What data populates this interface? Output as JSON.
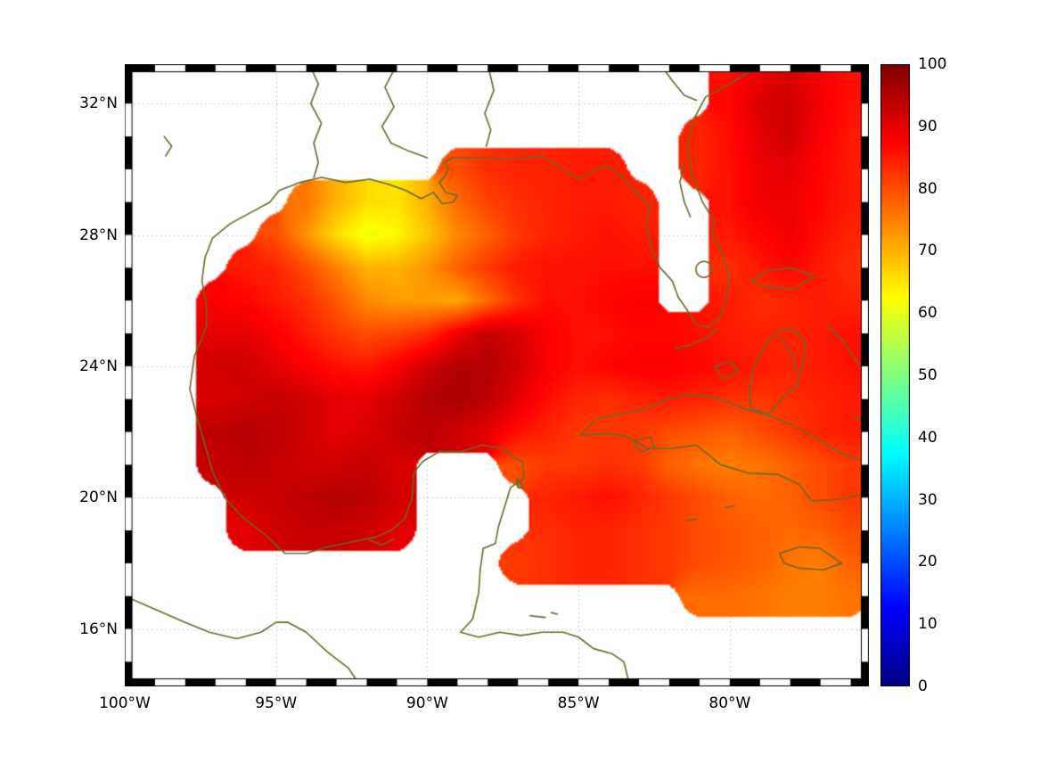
{
  "axes": {
    "x_ticks": [
      {
        "label": "100°W",
        "lon": -100
      },
      {
        "label": "95°W",
        "lon": -95
      },
      {
        "label": "90°W",
        "lon": -90
      },
      {
        "label": "85°W",
        "lon": -85
      },
      {
        "label": "80°W",
        "lon": -80
      }
    ],
    "y_ticks": [
      {
        "label": "32°N",
        "lat": 32
      },
      {
        "label": "28°N",
        "lat": 28
      },
      {
        "label": "24°N",
        "lat": 24
      },
      {
        "label": "20°N",
        "lat": 20
      },
      {
        "label": "16°N",
        "lat": 16
      }
    ],
    "extent": {
      "lon_min": -100,
      "lon_max": -75.4,
      "lat_min": 14.25,
      "lat_max": 33.2
    },
    "grid_on": true,
    "grid_color": "#c0c0c0",
    "coast_color": "#6a682a"
  },
  "colorbar": {
    "min": 0,
    "max": 100,
    "ticks": [
      0,
      10,
      20,
      30,
      40,
      50,
      60,
      70,
      80,
      90,
      100
    ],
    "colormap": "jet",
    "position": "right"
  },
  "chart_data": {
    "type": "heatmap",
    "title": "",
    "colormap": "jet",
    "value_range": [
      0,
      100
    ],
    "region": "Gulf of Mexico / NW Caribbean / W Atlantic",
    "no_data": "white (land and outside model domain)",
    "grid": {
      "lon_start": -100,
      "lon_step": 1,
      "lat_start": 33,
      "lat_step": -1,
      "ncols": 25,
      "nrows": 20
    },
    "values": [
      [
        null,
        null,
        null,
        null,
        null,
        null,
        null,
        null,
        null,
        null,
        null,
        null,
        null,
        null,
        null,
        null,
        null,
        null,
        null,
        null,
        86,
        89,
        91,
        88,
        86
      ],
      [
        null,
        null,
        null,
        null,
        null,
        null,
        null,
        null,
        null,
        null,
        null,
        null,
        null,
        null,
        null,
        null,
        null,
        null,
        null,
        null,
        87,
        91,
        92,
        89,
        86
      ],
      [
        null,
        null,
        null,
        null,
        null,
        null,
        null,
        null,
        null,
        null,
        null,
        null,
        null,
        null,
        null,
        null,
        null,
        null,
        null,
        84,
        86,
        90,
        92,
        88,
        85
      ],
      [
        null,
        null,
        null,
        null,
        null,
        null,
        null,
        null,
        null,
        null,
        null,
        80,
        83,
        84,
        84,
        85,
        85,
        null,
        null,
        84,
        86,
        89,
        90,
        87,
        85
      ],
      [
        null,
        null,
        null,
        null,
        null,
        null,
        76,
        70,
        66,
        65,
        70,
        77,
        81,
        83,
        84,
        85,
        85,
        84,
        null,
        null,
        86,
        89,
        89,
        87,
        85
      ],
      [
        null,
        null,
        null,
        null,
        null,
        80,
        73,
        66,
        61,
        63,
        68,
        74,
        78,
        82,
        84,
        85,
        86,
        85,
        null,
        null,
        85,
        87,
        89,
        86,
        84
      ],
      [
        null,
        null,
        null,
        null,
        85,
        84,
        80,
        75,
        70,
        70,
        73,
        78,
        82,
        85,
        86,
        86,
        86,
        86,
        null,
        null,
        83,
        85,
        87,
        85,
        83
      ],
      [
        null,
        null,
        null,
        88,
        87,
        85,
        83,
        79,
        74,
        72,
        72,
        71,
        77,
        83,
        86,
        86,
        87,
        88,
        null,
        null,
        85,
        83,
        84,
        85,
        84
      ],
      [
        null,
        null,
        null,
        90,
        90,
        88,
        85,
        82,
        80,
        81,
        83,
        89,
        93,
        91,
        88,
        86,
        86,
        87,
        87,
        86,
        85,
        84,
        84,
        85,
        86
      ],
      [
        null,
        null,
        null,
        92,
        92,
        90,
        88,
        86,
        85,
        88,
        92,
        95,
        95,
        92,
        88,
        86,
        87,
        88,
        88,
        87,
        86,
        85,
        84,
        85,
        86
      ],
      [
        null,
        null,
        null,
        91,
        92,
        93,
        92,
        90,
        90,
        92,
        95,
        96,
        94,
        90,
        86,
        84,
        83,
        84,
        85,
        84,
        83,
        82,
        83,
        84,
        85
      ],
      [
        null,
        null,
        null,
        94,
        95,
        94,
        92,
        90,
        91,
        93,
        94,
        92,
        90,
        86,
        84,
        82,
        82,
        82,
        80,
        79,
        78,
        80,
        82,
        84,
        85
      ],
      [
        null,
        null,
        null,
        93,
        94,
        93,
        92,
        92,
        93,
        91,
        null,
        null,
        null,
        80,
        82,
        82,
        83,
        82,
        78,
        76,
        75,
        76,
        78,
        80,
        82
      ],
      [
        null,
        null,
        null,
        null,
        92,
        93,
        94,
        95,
        94,
        92,
        null,
        null,
        null,
        null,
        84,
        85,
        86,
        84,
        82,
        80,
        78,
        77,
        78,
        80,
        82
      ],
      [
        null,
        null,
        null,
        null,
        90,
        92,
        93,
        93,
        92,
        90,
        null,
        null,
        null,
        null,
        83,
        84,
        84,
        83,
        82,
        80,
        79,
        78,
        77,
        78,
        80
      ],
      [
        null,
        null,
        null,
        null,
        null,
        null,
        null,
        null,
        null,
        null,
        null,
        null,
        null,
        82,
        83,
        84,
        84,
        83,
        82,
        80,
        79,
        78,
        76,
        75,
        78
      ],
      [
        null,
        null,
        null,
        null,
        null,
        null,
        null,
        null,
        null,
        null,
        null,
        null,
        null,
        null,
        null,
        null,
        null,
        null,
        null,
        77,
        77,
        76,
        75,
        75,
        76
      ],
      [
        null,
        null,
        null,
        null,
        null,
        null,
        null,
        null,
        null,
        null,
        null,
        null,
        null,
        null,
        null,
        null,
        null,
        null,
        null,
        null,
        null,
        null,
        null,
        null,
        null
      ],
      [
        null,
        null,
        null,
        null,
        null,
        null,
        null,
        null,
        null,
        null,
        null,
        null,
        null,
        null,
        null,
        null,
        null,
        null,
        null,
        null,
        null,
        null,
        null,
        null,
        null
      ],
      [
        null,
        null,
        null,
        null,
        null,
        null,
        null,
        null,
        null,
        null,
        null,
        null,
        null,
        null,
        null,
        null,
        null,
        null,
        null,
        null,
        null,
        null,
        null,
        null,
        null
      ]
    ]
  }
}
